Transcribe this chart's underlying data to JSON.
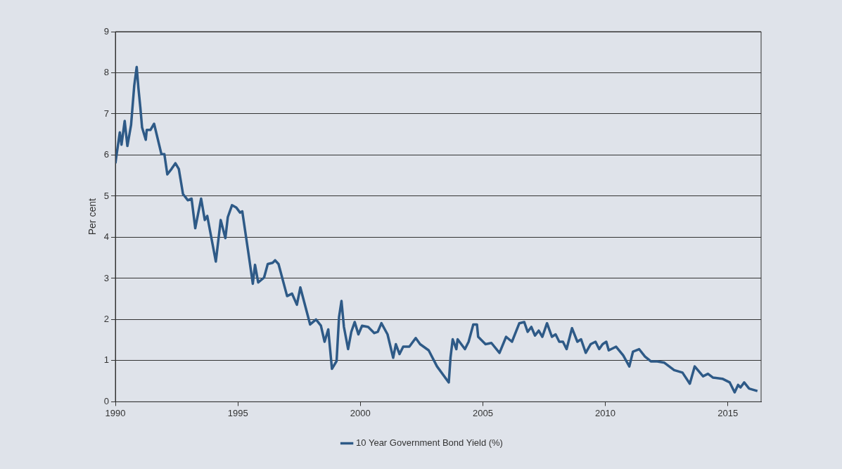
{
  "chart_data": {
    "type": "line",
    "ylabel": "Per cent",
    "xlim": [
      1990,
      2016.36
    ],
    "xticks": [
      1990,
      1995,
      2000,
      2005,
      2010,
      2015
    ],
    "ylim": [
      0,
      9
    ],
    "yticks": [
      0,
      1,
      2,
      3,
      4,
      5,
      6,
      7,
      8,
      9
    ],
    "grid": "y",
    "legend": "bottom",
    "marker": "none",
    "line_style": "solid",
    "series": [
      {
        "name": "10 Year Government Bond Yield (%)",
        "color": "#2e5a87",
        "x": [
          1990.0,
          1990.18,
          1990.25,
          1990.38,
          1990.49,
          1990.64,
          1990.77,
          1990.87,
          1990.94,
          1991.02,
          1991.09,
          1991.24,
          1991.28,
          1991.43,
          1991.58,
          1991.88,
          1992.0,
          1992.12,
          1992.29,
          1992.45,
          1992.59,
          1992.76,
          1992.96,
          1993.11,
          1993.26,
          1993.38,
          1993.5,
          1993.65,
          1993.75,
          1994.1,
          1994.3,
          1994.49,
          1994.59,
          1994.76,
          1994.94,
          1995.09,
          1995.18,
          1995.43,
          1995.61,
          1995.7,
          1995.83,
          1996.07,
          1996.22,
          1996.42,
          1996.52,
          1996.66,
          1997.01,
          1997.21,
          1997.41,
          1997.55,
          1997.95,
          1998.19,
          1998.39,
          1998.54,
          1998.69,
          1998.84,
          1999.03,
          1999.13,
          1999.23,
          1999.33,
          1999.5,
          1999.63,
          1999.77,
          1999.92,
          2000.07,
          2000.32,
          2000.57,
          2000.71,
          2000.86,
          2001.11,
          2001.34,
          2001.45,
          2001.6,
          2001.75,
          2002.0,
          2002.26,
          2002.44,
          2002.79,
          2003.13,
          2003.61,
          2003.68,
          2003.77,
          2003.92,
          2003.97,
          2004.27,
          2004.42,
          2004.61,
          2004.76,
          2004.81,
          2005.11,
          2005.35,
          2005.68,
          2005.95,
          2006.19,
          2006.49,
          2006.69,
          2006.83,
          2006.98,
          2007.13,
          2007.28,
          2007.43,
          2007.62,
          2007.82,
          2007.97,
          2008.12,
          2008.27,
          2008.42,
          2008.64,
          2008.86,
          2009.01,
          2009.2,
          2009.4,
          2009.6,
          2009.75,
          2009.89,
          2010.04,
          2010.14,
          2010.44,
          2010.73,
          2010.98,
          2011.13,
          2011.38,
          2011.62,
          2011.87,
          2012.12,
          2012.41,
          2012.81,
          2013.15,
          2013.45,
          2013.65,
          2013.99,
          2014.19,
          2014.39,
          2014.78,
          2015.08,
          2015.28,
          2015.42,
          2015.52,
          2015.67,
          2015.87,
          2016.21
        ],
        "values": [
          5.8,
          6.55,
          6.25,
          6.83,
          6.22,
          6.73,
          7.69,
          8.14,
          7.63,
          7.15,
          6.67,
          6.37,
          6.61,
          6.61,
          6.76,
          6.02,
          6.02,
          5.53,
          5.66,
          5.8,
          5.66,
          5.05,
          4.9,
          4.94,
          4.22,
          4.58,
          4.94,
          4.42,
          4.52,
          3.41,
          4.42,
          3.98,
          4.49,
          4.78,
          4.72,
          4.6,
          4.63,
          3.62,
          2.87,
          3.33,
          2.9,
          3.02,
          3.35,
          3.38,
          3.44,
          3.35,
          2.57,
          2.63,
          2.36,
          2.78,
          1.88,
          2.0,
          1.85,
          1.46,
          1.76,
          0.8,
          0.99,
          2.06,
          2.45,
          1.82,
          1.28,
          1.7,
          1.94,
          1.64,
          1.85,
          1.82,
          1.67,
          1.7,
          1.91,
          1.64,
          1.07,
          1.4,
          1.16,
          1.34,
          1.34,
          1.55,
          1.4,
          1.25,
          0.86,
          0.47,
          1.07,
          1.52,
          1.28,
          1.52,
          1.28,
          1.46,
          1.88,
          1.88,
          1.58,
          1.4,
          1.43,
          1.19,
          1.58,
          1.46,
          1.91,
          1.94,
          1.7,
          1.82,
          1.61,
          1.73,
          1.58,
          1.91,
          1.58,
          1.64,
          1.46,
          1.46,
          1.28,
          1.79,
          1.46,
          1.52,
          1.19,
          1.4,
          1.46,
          1.28,
          1.4,
          1.46,
          1.25,
          1.34,
          1.13,
          0.86,
          1.22,
          1.28,
          1.1,
          0.98,
          0.98,
          0.95,
          0.77,
          0.71,
          0.44,
          0.86,
          0.62,
          0.68,
          0.59,
          0.56,
          0.47,
          0.23,
          0.41,
          0.35,
          0.47,
          0.32,
          0.26
        ]
      }
    ]
  }
}
